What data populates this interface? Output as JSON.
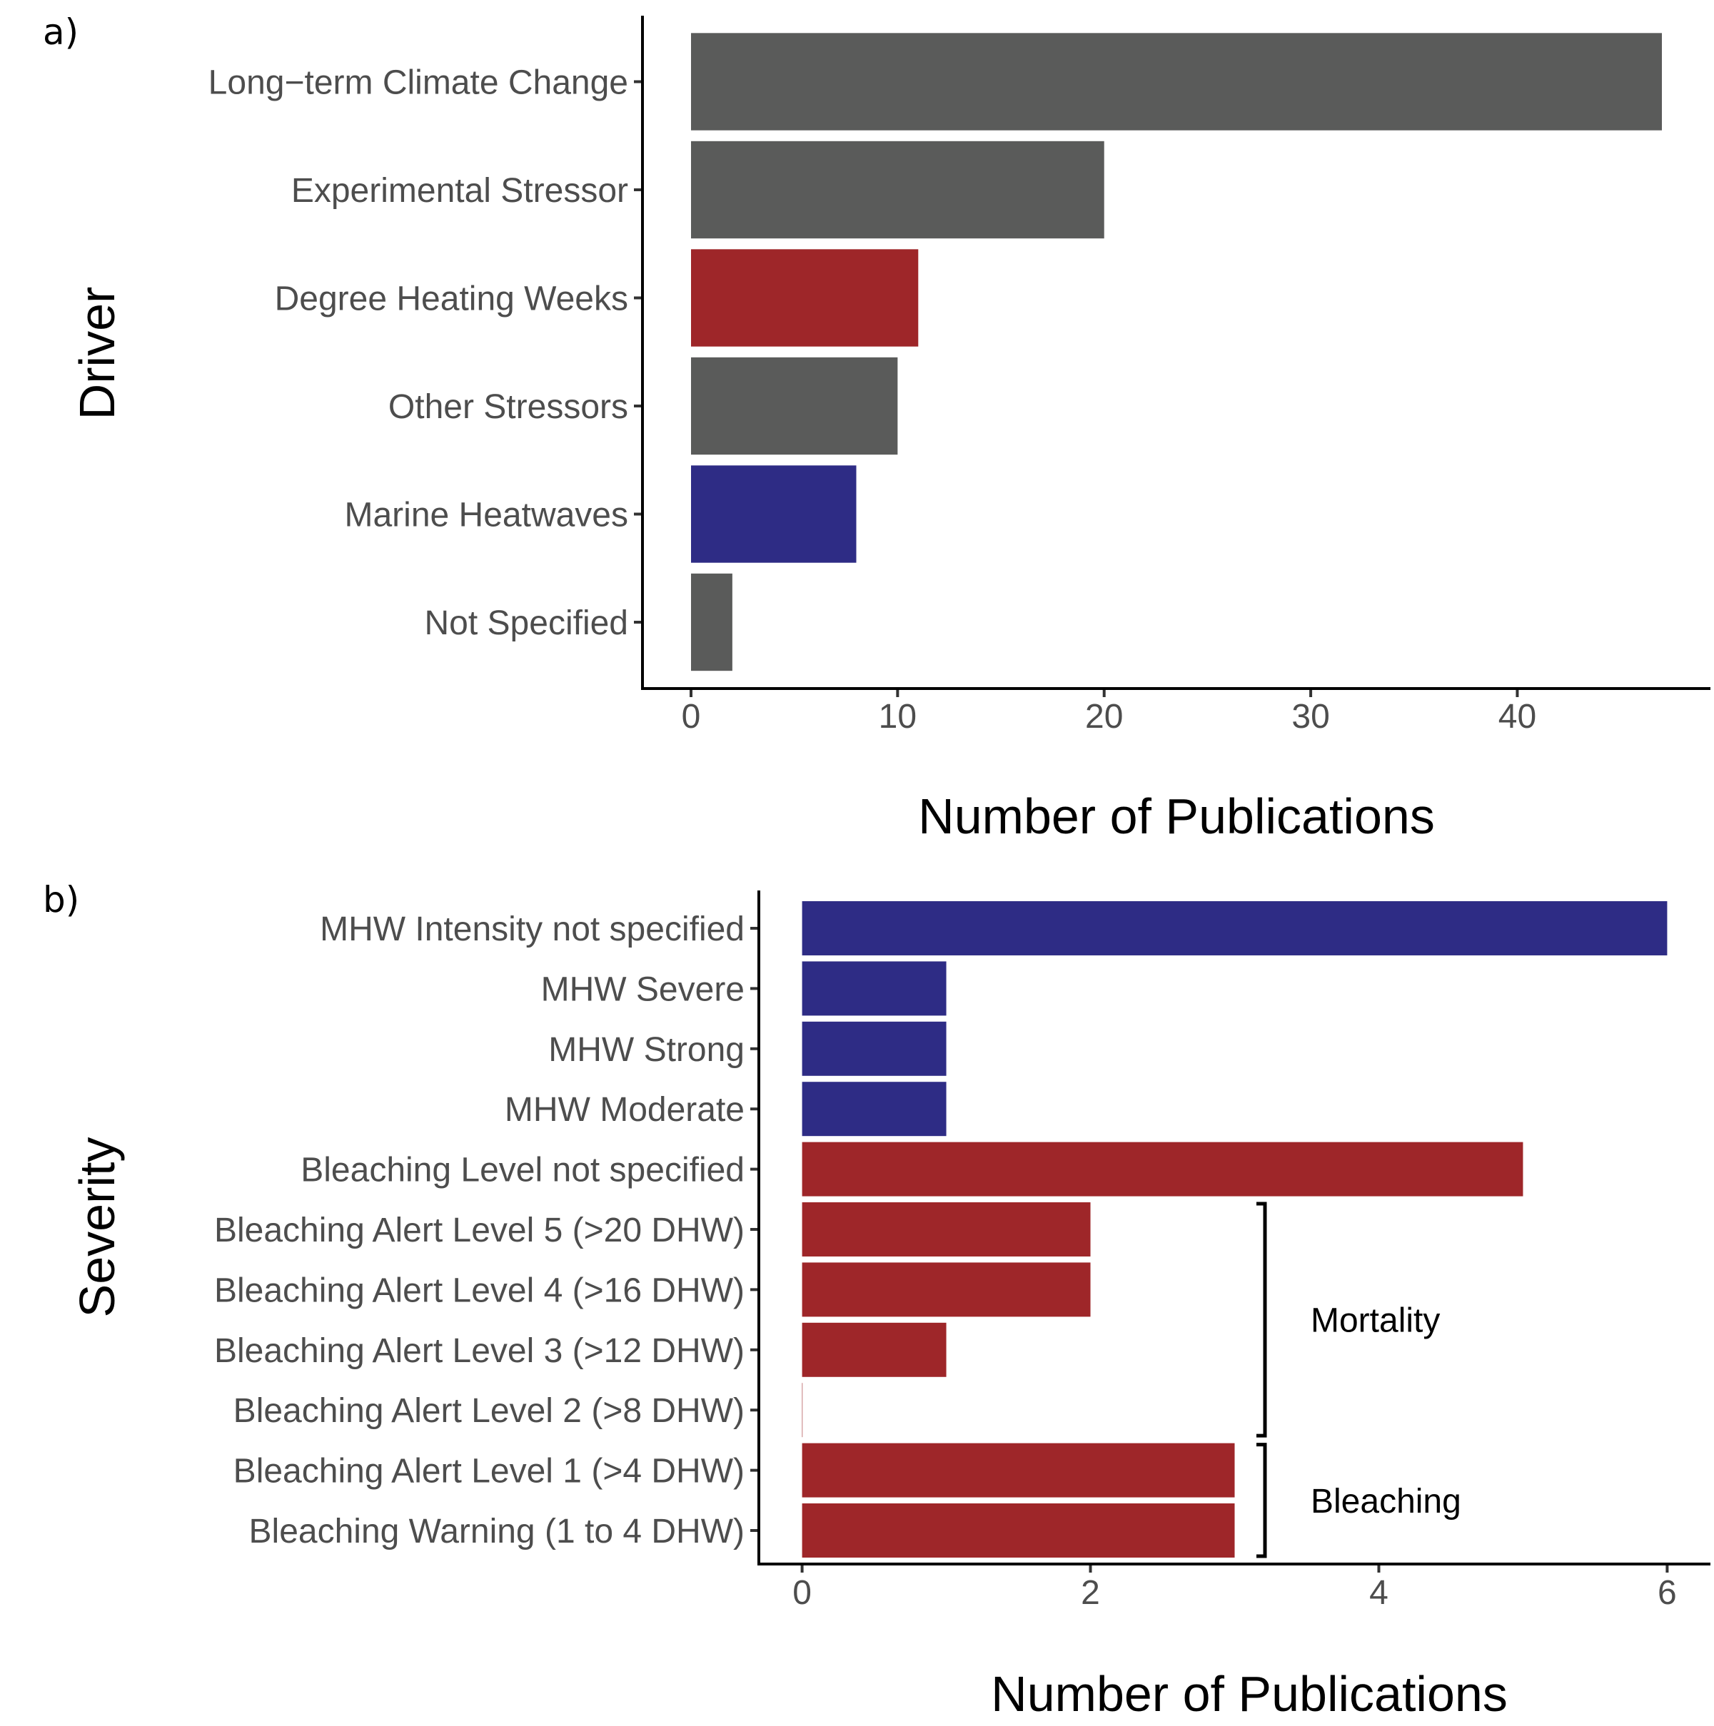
{
  "chart_data": [
    {
      "panel_label": "a)",
      "type": "bar",
      "orientation": "horizontal",
      "ylabel": "Driver",
      "xlabel": "Number of Publications",
      "categories": [
        "Long−term Climate Change",
        "Experimental Stressor",
        "Degree Heating Weeks",
        "Other Stressors",
        "Marine Heatwaves",
        "Not Specified"
      ],
      "values": [
        47,
        20,
        11,
        10,
        8,
        2
      ],
      "colors": [
        "#5a5b5a",
        "#5a5b5a",
        "#9e2629",
        "#5a5b5a",
        "#2e2c85",
        "#5a5b5a"
      ],
      "xticks": [
        0,
        10,
        20,
        30,
        40
      ],
      "xlim": [
        -2.35,
        49.35
      ],
      "grid": false
    },
    {
      "panel_label": "b)",
      "type": "bar",
      "orientation": "horizontal",
      "ylabel": "Severity",
      "xlabel": "Number of Publications",
      "categories": [
        "MHW Intensity not specified",
        "MHW Severe",
        "MHW Strong",
        "MHW Moderate",
        "Bleaching Level not specified",
        "Bleaching Alert Level 5 (>20 DHW)",
        "Bleaching Alert Level 4 (>16 DHW)",
        "Bleaching Alert Level 3 (>12 DHW)",
        "Bleaching Alert Level 2 (>8 DHW)",
        "Bleaching Alert Level 1 (>4 DHW)",
        "Bleaching Warning (1 to 4 DHW)"
      ],
      "values": [
        6,
        1,
        1,
        1,
        5,
        2,
        2,
        1,
        0,
        3,
        3
      ],
      "colors": [
        "#2e2c85",
        "#2e2c85",
        "#2e2c85",
        "#2e2c85",
        "#9e2629",
        "#9e2629",
        "#9e2629",
        "#9e2629",
        "#9e2629",
        "#9e2629",
        "#9e2629"
      ],
      "xticks": [
        0,
        2,
        4,
        6
      ],
      "xlim": [
        -0.3,
        6.3
      ],
      "grid": false,
      "annotations": [
        {
          "text": "Mortality",
          "from_category": "Bleaching Alert Level 5 (>20 DHW)",
          "to_category": "Bleaching Alert Level 2 (>8 DHW)"
        },
        {
          "text": "Bleaching",
          "from_category": "Bleaching Alert Level 1 (>4 DHW)",
          "to_category": "Bleaching Warning (1 to 4 DHW)"
        }
      ]
    }
  ]
}
